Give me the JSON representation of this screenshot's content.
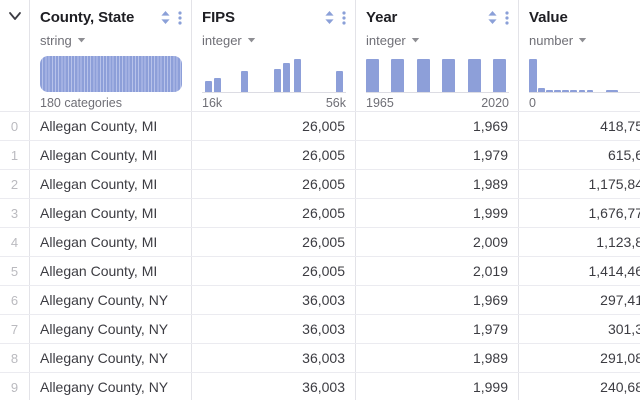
{
  "table": {
    "corner": {
      "icon": "chevron-down"
    },
    "colors": {
      "histogram_bar": "#8d9fd9",
      "histogram_stripe": "#b7c2ea",
      "icon_blue": "#8ba0d8",
      "title_text": "#1e1e23",
      "muted_text": "#6f6f76",
      "body_text": "#3c3c42",
      "row_number_text": "#bababf",
      "grid_line": "#e3e3e8"
    },
    "columns": [
      {
        "name": "County, State",
        "type": "string",
        "range_left": "180 categories",
        "range_right": "",
        "histogram": {
          "kind": "categorical"
        }
      },
      {
        "name": "FIPS",
        "type": "integer",
        "range_left": "16k",
        "range_right": "56k",
        "histogram": {
          "kind": "bars",
          "bars": [
            {
              "x": 0.021,
              "w": 0.048,
              "h": 0.29
            },
            {
              "x": 0.082,
              "w": 0.048,
              "h": 0.37
            },
            {
              "x": 0.274,
              "w": 0.048,
              "h": 0.58
            },
            {
              "x": 0.5,
              "w": 0.048,
              "h": 0.63
            },
            {
              "x": 0.562,
              "w": 0.048,
              "h": 0.79
            },
            {
              "x": 0.637,
              "w": 0.048,
              "h": 0.89
            },
            {
              "x": 0.932,
              "w": 0.048,
              "h": 0.58
            }
          ]
        }
      },
      {
        "name": "Year",
        "type": "integer",
        "range_left": "1965",
        "range_right": "2020",
        "histogram": {
          "kind": "bars",
          "bars": [
            {
              "x": 0.0,
              "w": 0.09,
              "h": 0.9
            },
            {
              "x": 0.177,
              "w": 0.09,
              "h": 0.9
            },
            {
              "x": 0.356,
              "w": 0.09,
              "h": 0.9
            },
            {
              "x": 0.534,
              "w": 0.09,
              "h": 0.9
            },
            {
              "x": 0.713,
              "w": 0.09,
              "h": 0.9
            },
            {
              "x": 0.89,
              "w": 0.09,
              "h": 0.9
            }
          ]
        }
      },
      {
        "name": "Value",
        "type": "number",
        "range_left": "0",
        "range_right": "",
        "histogram": {
          "kind": "bars",
          "bars": [
            {
              "x": 0.0,
              "w": 0.045,
              "h": 0.89
            },
            {
              "x": 0.05,
              "w": 0.04,
              "h": 0.1
            },
            {
              "x": 0.095,
              "w": 0.038,
              "h": 0.05
            },
            {
              "x": 0.14,
              "w": 0.038,
              "h": 0.05
            },
            {
              "x": 0.185,
              "w": 0.038,
              "h": 0.05
            },
            {
              "x": 0.23,
              "w": 0.038,
              "h": 0.05
            },
            {
              "x": 0.275,
              "w": 0.038,
              "h": 0.05
            },
            {
              "x": 0.32,
              "w": 0.038,
              "h": 0.05
            },
            {
              "x": 0.43,
              "w": 0.065,
              "h": 0.05
            }
          ]
        }
      }
    ],
    "rows": [
      {
        "index": "0",
        "cells": [
          "Allegan County, MI",
          "26,005",
          "1,969",
          "418,75"
        ]
      },
      {
        "index": "1",
        "cells": [
          "Allegan County, MI",
          "26,005",
          "1,979",
          "615,6"
        ]
      },
      {
        "index": "2",
        "cells": [
          "Allegan County, MI",
          "26,005",
          "1,989",
          "1,175,84"
        ]
      },
      {
        "index": "3",
        "cells": [
          "Allegan County, MI",
          "26,005",
          "1,999",
          "1,676,77"
        ]
      },
      {
        "index": "4",
        "cells": [
          "Allegan County, MI",
          "26,005",
          "2,009",
          "1,123,8"
        ]
      },
      {
        "index": "5",
        "cells": [
          "Allegan County, MI",
          "26,005",
          "2,019",
          "1,414,46"
        ]
      },
      {
        "index": "6",
        "cells": [
          "Allegany County, NY",
          "36,003",
          "1,969",
          "297,41"
        ]
      },
      {
        "index": "7",
        "cells": [
          "Allegany County, NY",
          "36,003",
          "1,979",
          "301,3"
        ]
      },
      {
        "index": "8",
        "cells": [
          "Allegany County, NY",
          "36,003",
          "1,989",
          "291,08"
        ]
      },
      {
        "index": "9",
        "cells": [
          "Allegany County, NY",
          "36,003",
          "1,999",
          "240,68"
        ]
      }
    ]
  }
}
